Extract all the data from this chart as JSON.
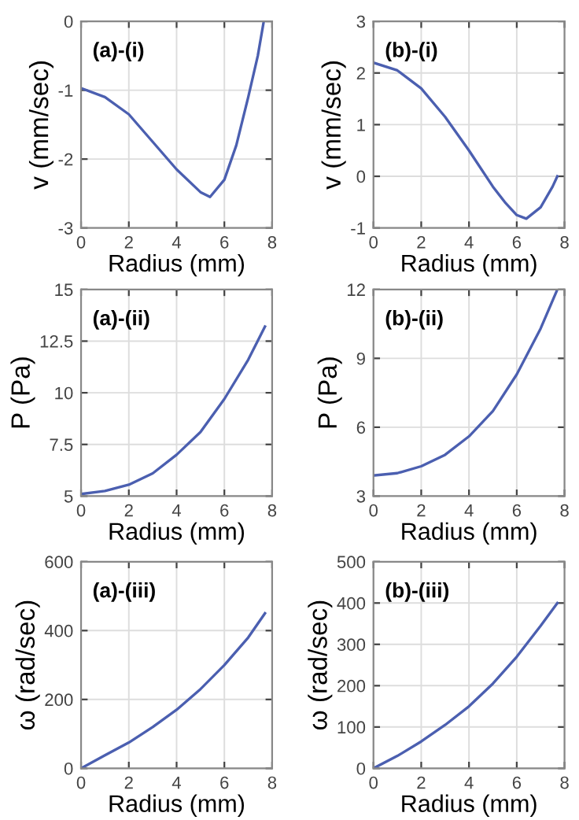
{
  "chart_data": [
    {
      "type": "line",
      "annotations": [
        "(a)-(i)"
      ],
      "xlabel": "Radius (mm)",
      "ylabel": "v (mm/sec)",
      "x": [
        0,
        1,
        2,
        3,
        4,
        5,
        5.4,
        6,
        6.5,
        7,
        7.4,
        7.65
      ],
      "series": [
        {
          "color": "#4b5fb0",
          "values": [
            -0.97,
            -1.1,
            -1.35,
            -1.75,
            -2.15,
            -2.48,
            -2.55,
            -2.3,
            -1.8,
            -1.1,
            -0.5,
            0
          ]
        }
      ],
      "xlim": [
        0,
        8
      ],
      "xticks": [
        0,
        2,
        4,
        6,
        8
      ],
      "ylim": [
        -3,
        0
      ],
      "yticks": [
        -3,
        -2,
        -1,
        0
      ],
      "grid": true,
      "legend": false,
      "marker": "none",
      "line_style": "solid"
    },
    {
      "type": "line",
      "annotations": [
        "(b)-(i)"
      ],
      "xlabel": "Radius (mm)",
      "ylabel": "v (mm/sec)",
      "x": [
        0,
        1,
        2,
        3,
        4,
        5,
        5.5,
        6,
        6.4,
        7,
        7.5,
        7.7
      ],
      "series": [
        {
          "color": "#4b5fb0",
          "values": [
            2.2,
            2.05,
            1.7,
            1.15,
            0.5,
            -0.2,
            -0.5,
            -0.75,
            -0.82,
            -0.6,
            -0.2,
            0
          ]
        }
      ],
      "xlim": [
        0,
        8
      ],
      "xticks": [
        0,
        2,
        4,
        6,
        8
      ],
      "ylim": [
        -1,
        3
      ],
      "yticks": [
        -1,
        0,
        1,
        2,
        3
      ],
      "grid": true,
      "legend": false,
      "marker": "none",
      "line_style": "solid"
    },
    {
      "type": "line",
      "annotations": [
        "(a)-(ii)"
      ],
      "xlabel": "Radius (mm)",
      "ylabel": "P (Pa)",
      "x": [
        0,
        1,
        2,
        3,
        4,
        5,
        6,
        7,
        7.7
      ],
      "series": [
        {
          "color": "#4b5fb0",
          "values": [
            5.1,
            5.25,
            5.55,
            6.1,
            7.0,
            8.1,
            9.7,
            11.6,
            13.2
          ]
        }
      ],
      "xlim": [
        0,
        8
      ],
      "xticks": [
        0,
        2,
        4,
        6,
        8
      ],
      "ylim": [
        5,
        15
      ],
      "yticks": [
        5,
        7.5,
        10,
        12.5,
        15
      ],
      "grid": true,
      "legend": false,
      "marker": "none",
      "line_style": "solid"
    },
    {
      "type": "line",
      "annotations": [
        "(b)-(ii)"
      ],
      "xlabel": "Radius (mm)",
      "ylabel": "P (Pa)",
      "x": [
        0,
        1,
        2,
        3,
        4,
        5,
        6,
        7,
        7.7
      ],
      "series": [
        {
          "color": "#4b5fb0",
          "values": [
            3.9,
            4.0,
            4.3,
            4.8,
            5.6,
            6.7,
            8.3,
            10.3,
            12
          ]
        }
      ],
      "xlim": [
        0,
        8
      ],
      "xticks": [
        0,
        2,
        4,
        6,
        8
      ],
      "ylim": [
        3,
        12
      ],
      "yticks": [
        3,
        6,
        9,
        12
      ],
      "grid": true,
      "legend": false,
      "marker": "none",
      "line_style": "solid"
    },
    {
      "type": "line",
      "annotations": [
        "(a)-(iii)"
      ],
      "xlabel": "Radius (mm)",
      "ylabel": "ω (rad/sec)",
      "x": [
        0,
        1,
        2,
        3,
        4,
        5,
        6,
        7,
        7.7
      ],
      "series": [
        {
          "color": "#4b5fb0",
          "values": [
            0,
            38,
            75,
            120,
            170,
            230,
            300,
            380,
            450
          ]
        }
      ],
      "xlim": [
        0,
        8
      ],
      "xticks": [
        0,
        2,
        4,
        6,
        8
      ],
      "ylim": [
        0,
        600
      ],
      "yticks": [
        0,
        200,
        400,
        600
      ],
      "grid": true,
      "legend": false,
      "marker": "none",
      "line_style": "solid"
    },
    {
      "type": "line",
      "annotations": [
        "(b)-(iii)"
      ],
      "xlabel": "Radius (mm)",
      "ylabel": "ω (rad/sec)",
      "x": [
        0,
        1,
        2,
        3,
        4,
        5,
        6,
        7,
        7.7
      ],
      "series": [
        {
          "color": "#4b5fb0",
          "values": [
            0,
            30,
            65,
            105,
            150,
            205,
            270,
            345,
            400
          ]
        }
      ],
      "xlim": [
        0,
        8
      ],
      "xticks": [
        0,
        2,
        4,
        6,
        8
      ],
      "ylim": [
        0,
        500
      ],
      "yticks": [
        0,
        100,
        200,
        300,
        400,
        500
      ],
      "grid": true,
      "legend": false,
      "marker": "none",
      "line_style": "solid"
    }
  ]
}
